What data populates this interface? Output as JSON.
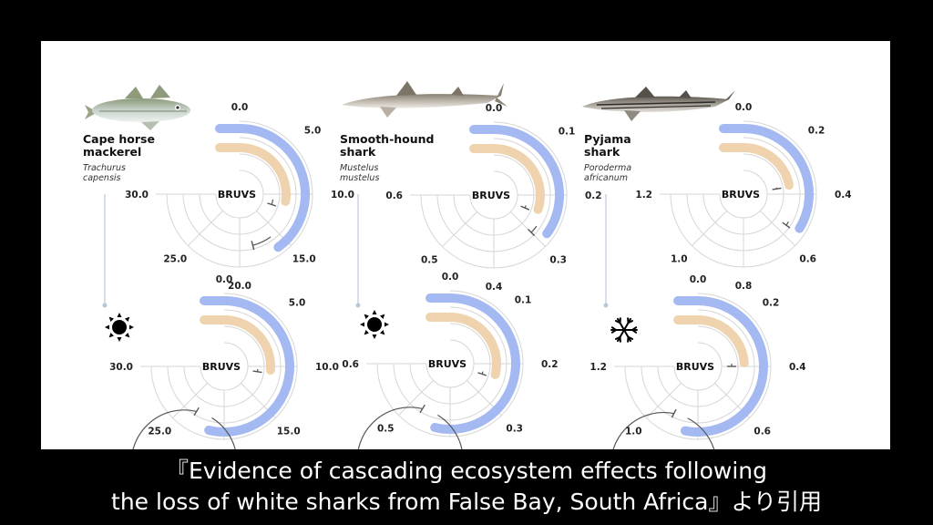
{
  "chart_data": [
    {
      "type": "radial-bar",
      "species": {
        "common_name": "Cape horse mackerel",
        "latin_name": "Trachurus capensis"
      },
      "center_label": "BRUVS",
      "max": 30,
      "tick_labels": [
        "0.0",
        "5.0",
        "10.0",
        "15.0",
        "20.0",
        "25.0",
        "30.0"
      ],
      "rows": [
        {
          "condition": "",
          "outer": 16.0,
          "outer_err": 2.4,
          "inner": 11.0,
          "inner_err": 1.0
        },
        {
          "condition": "sun",
          "outer": 21.5,
          "outer_err": 2.0,
          "inner": 10.5,
          "inner_err": 0.5
        }
      ]
    },
    {
      "type": "radial-bar",
      "species": {
        "common_name": "Smooth-hound shark",
        "latin_name": "Mustelus mustelus"
      },
      "center_label": "BRUVS",
      "max": 0.6,
      "tick_labels": [
        "0.0",
        "0.1",
        "0.2",
        "0.3",
        "0.4",
        "0.5",
        "0.6"
      ],
      "rows": [
        {
          "condition": "",
          "outer": 0.28,
          "outer_err": 0.02,
          "inner": 0.24,
          "inner_err": 0.01
        },
        {
          "condition": "sun",
          "outer": 0.43,
          "outer_err": 0.04,
          "inner": 0.23,
          "inner_err": 0.01
        }
      ]
    },
    {
      "type": "radial-bar",
      "species": {
        "common_name": "Pyjama shark",
        "latin_name": "Poroderma africanum"
      },
      "center_label": "BRUVS",
      "max": 1.2,
      "tick_labels": [
        "0.0",
        "0.2",
        "0.4",
        "0.6",
        "0.8",
        "1.0",
        "1.2"
      ],
      "rows": [
        {
          "condition": "",
          "outer": 0.54,
          "outer_err": 0.02,
          "inner": 0.35,
          "inner_err": 0.01
        },
        {
          "condition": "snowflake",
          "outer": 0.85,
          "outer_err": 0.07,
          "inner": 0.38,
          "inner_err": 0.02
        }
      ]
    }
  ],
  "colors": {
    "outer": "#a4b9f2",
    "inner": "#eed3ae",
    "grid": "#d6d6d6",
    "error": "#555555"
  },
  "icons": {
    "sun": "sun-icon",
    "snowflake": "snowflake-icon"
  },
  "caption": {
    "line1": "『Evidence of cascading ecosystem effects following",
    "line2": "the loss of white sharks from False Bay, South Africa』より引用"
  }
}
